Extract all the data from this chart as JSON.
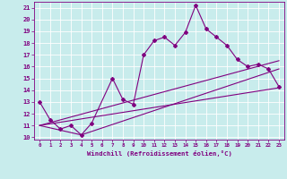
{
  "xlabel": "Windchill (Refroidissement éolien,°C)",
  "bg_color": "#c8ecec",
  "plot_color": "#800080",
  "grid_color": "#ffffff",
  "ylim": [
    9.8,
    21.5
  ],
  "xlim": [
    -0.5,
    23.5
  ],
  "yticks": [
    10,
    11,
    12,
    13,
    14,
    15,
    16,
    17,
    18,
    19,
    20,
    21
  ],
  "xticks": [
    0,
    1,
    2,
    3,
    4,
    5,
    6,
    7,
    8,
    9,
    10,
    11,
    12,
    13,
    14,
    15,
    16,
    17,
    18,
    19,
    20,
    21,
    22,
    23
  ],
  "main_x": [
    0,
    1,
    2,
    3,
    4,
    5,
    7,
    8,
    9,
    10,
    11,
    12,
    13,
    14,
    15,
    16,
    17,
    18,
    19,
    20,
    21,
    22,
    23
  ],
  "main_y": [
    13.0,
    11.5,
    10.7,
    11.0,
    10.2,
    11.2,
    15.0,
    13.2,
    12.8,
    17.0,
    18.2,
    18.5,
    17.8,
    18.9,
    21.2,
    19.2,
    18.5,
    17.8,
    16.6,
    16.0,
    16.2,
    15.8,
    14.3
  ],
  "line1_x": [
    0,
    23
  ],
  "line1_y": [
    11.0,
    14.2
  ],
  "line2_x": [
    0,
    4,
    23
  ],
  "line2_y": [
    11.0,
    10.2,
    15.8
  ],
  "line3_x": [
    0,
    23
  ],
  "line3_y": [
    11.0,
    16.5
  ]
}
